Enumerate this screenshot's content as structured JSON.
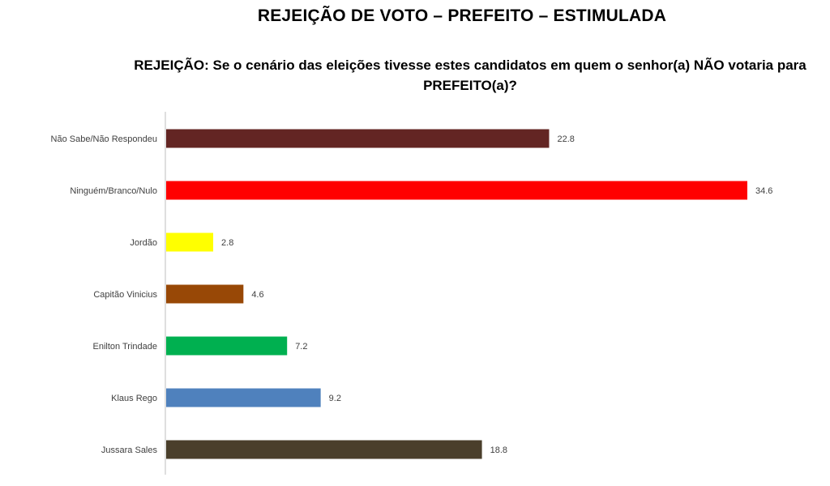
{
  "title": "REJEIÇÃO DE VOTO – PREFEITO – ESTIMULADA",
  "subtitle": "REJEIÇÃO: Se o cenário das eleições tivesse estes candidatos em quem o senhor(a) NÃO votaria para PREFEITO(a)?",
  "chart_data": {
    "type": "bar",
    "orientation": "horizontal",
    "categories": [
      "Não Sabe/Não Respondeu",
      "Ninguém/Branco/Nulo",
      "Jordão",
      "Capitão Vinicius",
      "Enilton Trindade",
      "Klaus Rego",
      "Jussara Sales"
    ],
    "values": [
      22.8,
      34.6,
      2.8,
      4.6,
      7.2,
      9.2,
      18.8
    ],
    "value_labels": [
      "22.8",
      "34.6",
      "2.8",
      "4.6",
      "7.2",
      "9.2",
      "18.8"
    ],
    "colors": [
      "#632523",
      "#ff0000",
      "#ffff00",
      "#984806",
      "#00b050",
      "#4f81bd",
      "#4a3f2b"
    ],
    "xlim": [
      0,
      34.6
    ],
    "grid": false,
    "legend": "none"
  }
}
